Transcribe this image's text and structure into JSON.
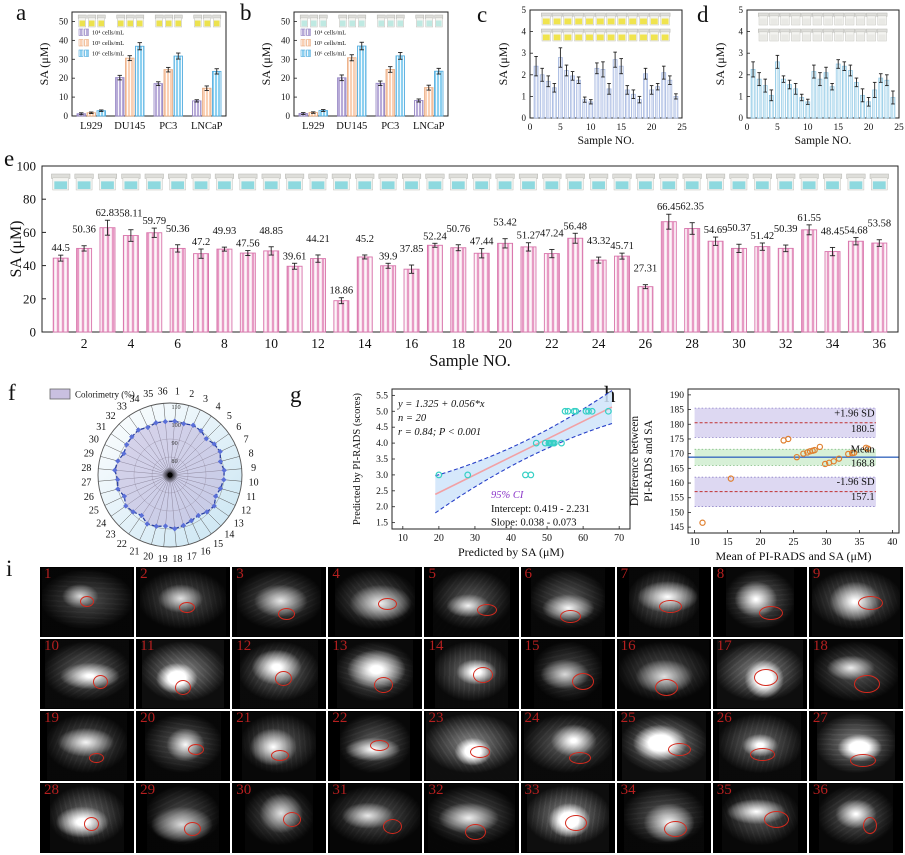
{
  "panels": {
    "a": "a",
    "b": "b",
    "c": "c",
    "d": "d",
    "e": "e",
    "f": "f",
    "g": "g",
    "h": "h",
    "i": "i"
  },
  "chart_data": [
    {
      "id": "a",
      "type": "bar",
      "ylabel": "SA (μM)",
      "ylim": [
        0,
        55
      ],
      "yticks": [
        0,
        10,
        20,
        30,
        40,
        50
      ],
      "categories": [
        "L929",
        "DU145",
        "PC3",
        "LNCaP"
      ],
      "series": [
        {
          "name": "10⁴ cells/mL",
          "color": "#b4a7d6",
          "edge": "#8f7fc0",
          "values": [
            1.2,
            20.3,
            17.1,
            8.0
          ],
          "errors": [
            0.5,
            1.2,
            1.0,
            0.6
          ]
        },
        {
          "name": "10⁵ cells/mL",
          "color": "#f9cdb0",
          "edge": "#e8a87c",
          "values": [
            1.7,
            30.6,
            24.5,
            14.7
          ],
          "errors": [
            0.4,
            1.3,
            1.2,
            1.2
          ]
        },
        {
          "name": "10⁶ cells/mL",
          "color": "#86cdf0",
          "edge": "#4aa8dc",
          "values": [
            2.8,
            36.9,
            31.7,
            23.6
          ],
          "errors": [
            0.4,
            1.9,
            1.6,
            1.4
          ]
        }
      ],
      "cuvette_color": "#ece24e"
    },
    {
      "id": "b",
      "type": "bar",
      "ylabel": "SA (μM)",
      "ylim": [
        0,
        55
      ],
      "yticks": [
        0,
        10,
        20,
        30,
        40,
        50
      ],
      "categories": [
        "L929",
        "DU145",
        "PC3",
        "LNCaP"
      ],
      "series": [
        {
          "name": "10⁴ cells/mL",
          "color": "#b4a7d6",
          "edge": "#8f7fc0",
          "values": [
            1.3,
            20.2,
            17.3,
            8.2
          ],
          "errors": [
            0.5,
            1.5,
            1.2,
            0.8
          ]
        },
        {
          "name": "10⁵ cells/mL",
          "color": "#f9cdb0",
          "edge": "#e8a87c",
          "values": [
            1.8,
            30.8,
            24.6,
            15.0
          ],
          "errors": [
            0.4,
            1.6,
            1.5,
            1.3
          ]
        },
        {
          "name": "10⁶ cells/mL",
          "color": "#86cdf0",
          "edge": "#4aa8dc",
          "values": [
            2.9,
            37.0,
            31.8,
            23.7
          ],
          "errors": [
            0.5,
            2.0,
            1.8,
            1.5
          ]
        }
      ],
      "cuvette_color": "#bfe9e2"
    },
    {
      "id": "c",
      "type": "bar",
      "ylabel": "SA (μM)",
      "xlabel": "Sample NO.",
      "ylim": [
        0,
        5
      ],
      "yticks": [
        0,
        1,
        2,
        3,
        4,
        5
      ],
      "xlim": [
        0,
        25
      ],
      "xticks": [
        0,
        5,
        10,
        15,
        20,
        25
      ],
      "bar_color": "#cdd8f0",
      "bar_edge": "#9fb2dd",
      "cuvette_color": "#f0e44e",
      "cuvette_rows": 2,
      "values": [
        2.4,
        2.0,
        1.7,
        1.4,
        2.8,
        2.2,
        1.95,
        1.75,
        0.85,
        0.75,
        2.3,
        2.25,
        1.35,
        2.7,
        2.4,
        1.3,
        1.1,
        0.85,
        2.05,
        1.3,
        1.45,
        2.1,
        1.75,
        1.0
      ],
      "errors": [
        0.45,
        0.3,
        0.25,
        0.2,
        0.45,
        0.25,
        0.2,
        0.15,
        0.12,
        0.1,
        0.25,
        0.35,
        0.25,
        0.35,
        0.35,
        0.2,
        0.2,
        0.15,
        0.25,
        0.2,
        0.15,
        0.3,
        0.2,
        0.12
      ]
    },
    {
      "id": "d",
      "type": "bar",
      "ylabel": "SA (μM)",
      "xlabel": "Sample NO.",
      "ylim": [
        0,
        5
      ],
      "yticks": [
        0,
        1,
        2,
        3,
        4,
        5
      ],
      "xlim": [
        0,
        25
      ],
      "xticks": [
        0,
        5,
        10,
        15,
        20,
        25
      ],
      "bar_color": "#c2e3f2",
      "bar_edge": "#8cc6e4",
      "cuvette_color": "#e9e9e5",
      "cuvette_rows": 2,
      "values": [
        2.25,
        1.8,
        1.5,
        1.05,
        2.6,
        1.8,
        1.55,
        1.35,
        0.95,
        0.75,
        2.15,
        1.8,
        2.1,
        1.45,
        2.5,
        2.4,
        2.2,
        1.65,
        1.05,
        0.75,
        1.3,
        1.85,
        1.75,
        0.95
      ],
      "errors": [
        0.35,
        0.3,
        0.3,
        0.25,
        0.3,
        0.15,
        0.2,
        0.25,
        0.15,
        0.12,
        0.3,
        0.3,
        0.25,
        0.15,
        0.2,
        0.2,
        0.25,
        0.2,
        0.3,
        0.2,
        0.35,
        0.2,
        0.25,
        0.3
      ]
    },
    {
      "id": "e",
      "type": "bar",
      "ylabel": "SA (μM)",
      "xlabel": "Sample NO.",
      "ylim": [
        0,
        100
      ],
      "yticks": [
        0,
        20,
        40,
        60,
        80,
        100
      ],
      "xticks": [
        2,
        4,
        6,
        8,
        10,
        12,
        14,
        16,
        18,
        20,
        22,
        24,
        26,
        28,
        30,
        32,
        34,
        36
      ],
      "bar_color": "#e79ac4",
      "bar_edge": "#d874ab",
      "cuvette_color": "#8ed9df",
      "values": [
        44.5,
        50.36,
        62.83,
        58.11,
        59.79,
        50.36,
        47.2,
        49.93,
        47.56,
        48.85,
        39.61,
        44.21,
        18.86,
        45.2,
        39.9,
        37.85,
        52.24,
        50.76,
        47.44,
        53.42,
        51.27,
        47.24,
        56.48,
        43.32,
        45.71,
        27.31,
        66.45,
        62.35,
        54.69,
        50.37,
        51.42,
        50.39,
        61.55,
        48.45,
        54.68,
        53.58
      ],
      "value_labels": [
        "44.5",
        "50.36",
        "62.83",
        "58.11",
        "59.79",
        "50.36",
        "47.2",
        "49.93",
        "47.56",
        "48.85",
        "39.61",
        "44.21",
        "18.86",
        "45.2",
        "39.9",
        "37.85",
        "52.24",
        "50.76",
        "47.44",
        "53.42",
        "51.27",
        "47.24",
        "56.48",
        "43.32",
        "45.71",
        "27.31",
        "66.45",
        "62.35",
        "54.69",
        "50.37",
        "51.42",
        "50.39",
        "61.55",
        "48.45",
        "54.68",
        "53.58"
      ],
      "errors": [
        1.8,
        1.6,
        4.5,
        3.5,
        2.8,
        2.2,
        2.8,
        1.2,
        1.5,
        2.5,
        1.8,
        2.2,
        1.8,
        1.2,
        1.5,
        2.5,
        1.2,
        1.8,
        2.8,
        2.8,
        2.5,
        2.5,
        3.0,
        1.8,
        1.8,
        1.2,
        4.5,
        3.5,
        2.5,
        2.5,
        2.2,
        2.0,
        3.0,
        2.5,
        2.2,
        2.0
      ]
    },
    {
      "id": "f",
      "type": "radar",
      "legend": "Colorimetry (%)",
      "spoke_labels": [
        "1",
        "2",
        "3",
        "4",
        "5",
        "6",
        "7",
        "8",
        "9",
        "10",
        "11",
        "12",
        "13",
        "14",
        "15",
        "16",
        "17",
        "18",
        "19",
        "20",
        "21",
        "22",
        "23",
        "24",
        "25",
        "26",
        "27",
        "28",
        "29",
        "30",
        "31",
        "32",
        "33",
        "34",
        "35",
        "36"
      ],
      "rticks": [
        80,
        90,
        100,
        110
      ],
      "rlim": [
        70,
        110
      ],
      "fill_color": "#beb3da",
      "line_color": "#2a3f9f",
      "marker_color": "#5a6fd8",
      "values": [
        100,
        99.5,
        100.5,
        100,
        98.5,
        100,
        100.8,
        99,
        100.2,
        100,
        99,
        98,
        100,
        99,
        97.5,
        98,
        99,
        100,
        98.5,
        99.5,
        100,
        97.5,
        99,
        100,
        98,
        100,
        99.2,
        100.8,
        100,
        98.3,
        99.4,
        100,
        100.6,
        99.2,
        100,
        99.8
      ]
    },
    {
      "id": "g",
      "type": "scatter",
      "xlabel": "Predicted by SA (μM)",
      "ylabel": "Predicted by PI-RADS (scores)",
      "xlim": [
        7,
        73
      ],
      "xticks": [
        10,
        20,
        30,
        40,
        50,
        60,
        70
      ],
      "ylim": [
        1.3,
        5.7
      ],
      "yticks": [
        1.5,
        2.0,
        2.5,
        3.0,
        3.5,
        4.0,
        4.5,
        5.0,
        5.5
      ],
      "points": [
        [
          20,
          3
        ],
        [
          28,
          3
        ],
        [
          44,
          3
        ],
        [
          45.5,
          3
        ],
        [
          47,
          4
        ],
        [
          49.5,
          4
        ],
        [
          50.5,
          4
        ],
        [
          50.8,
          4
        ],
        [
          51.2,
          4
        ],
        [
          51.6,
          4
        ],
        [
          52,
          4
        ],
        [
          54,
          4
        ],
        [
          55,
          5
        ],
        [
          55.8,
          5
        ],
        [
          57.5,
          5
        ],
        [
          58,
          5
        ],
        [
          60.8,
          5
        ],
        [
          61.5,
          5
        ],
        [
          62.5,
          5
        ],
        [
          67,
          5
        ]
      ],
      "fit": {
        "intercept": 1.325,
        "slope": 0.056,
        "x_range": [
          19,
          68
        ]
      },
      "ci_halfwidth": {
        "base": 0.28,
        "quad": 0.00045,
        "x_center": 45
      },
      "annotations": {
        "equation": "y = 1.325 + 0.056*x",
        "n": "n = 20",
        "r": "r = 0.84; P < 0.001",
        "ci_title": "95% CI",
        "intercept": "Intercept:  0.419 - 2.231",
        "slope": "Slope:  0.038 - 0.073"
      },
      "colors": {
        "band": "#cfe4fa",
        "ci_line": "#2840c8",
        "fit_line": "#f2a0a4",
        "point": "#35d0c5",
        "ci_text": "#8a35c8"
      }
    },
    {
      "id": "h",
      "type": "scatter",
      "xlabel": "Mean of PI-RADS and SA (μM)",
      "ylabel_lines": [
        "Difference between",
        "PI-RADS and SA"
      ],
      "xlim": [
        9,
        41
      ],
      "xticks": [
        10,
        15,
        20,
        25,
        30,
        35,
        40
      ],
      "ylim": [
        143,
        192
      ],
      "yticks": [
        145,
        150,
        155,
        160,
        165,
        170,
        175,
        180,
        185,
        190
      ],
      "mean": 168.8,
      "upper": 180.5,
      "lower": 157.1,
      "labels": {
        "upper": "+1.96 SD",
        "upper_value": "180.5",
        "mean": "Mean",
        "mean_value": "168.8",
        "lower": "-1.96 SD",
        "lower_value": "157.1"
      },
      "bands": {
        "upper": [
          175.5,
          185.5
        ],
        "mean": [
          166,
          171.5
        ],
        "lower": [
          152,
          162
        ],
        "x_range": [
          10,
          37.5
        ]
      },
      "points": [
        [
          11.2,
          146.5
        ],
        [
          15.5,
          161.5
        ],
        [
          23.5,
          174.5
        ],
        [
          24.2,
          175
        ],
        [
          25.5,
          168.8
        ],
        [
          26.5,
          170
        ],
        [
          27.1,
          170.4
        ],
        [
          27.5,
          170.8
        ],
        [
          27.9,
          171
        ],
        [
          28.2,
          171.2
        ],
        [
          29,
          172.3
        ],
        [
          29.8,
          166.5
        ],
        [
          30.4,
          166.9
        ],
        [
          31.1,
          167.4
        ],
        [
          31.9,
          168.3
        ],
        [
          33.3,
          169.9
        ],
        [
          33.9,
          170.2
        ],
        [
          34.2,
          170.3
        ],
        [
          36,
          172
        ],
        [
          36.3,
          171.7
        ]
      ],
      "colors": {
        "band": "#ddd8f2",
        "mean_band": "#d7f0d7",
        "sd_line": "#c03030",
        "mean_line": "#3a6abf",
        "point": "#e08030"
      }
    }
  ],
  "mri_grid": {
    "rows": 4,
    "cols": 9,
    "numbers": [
      "1",
      "2",
      "3",
      "4",
      "5",
      "6",
      "7",
      "8",
      "9",
      "10",
      "11",
      "12",
      "13",
      "14",
      "15",
      "16",
      "17",
      "18",
      "19",
      "20",
      "21",
      "22",
      "23",
      "24",
      "25",
      "26",
      "27",
      "28",
      "29",
      "30",
      "31",
      "32",
      "33",
      "34",
      "35",
      "36"
    ],
    "number_color": "#b51f1f",
    "annotation_color": "#d42a1e",
    "bright_cells": [
      11,
      17,
      23,
      25,
      27,
      33
    ]
  }
}
